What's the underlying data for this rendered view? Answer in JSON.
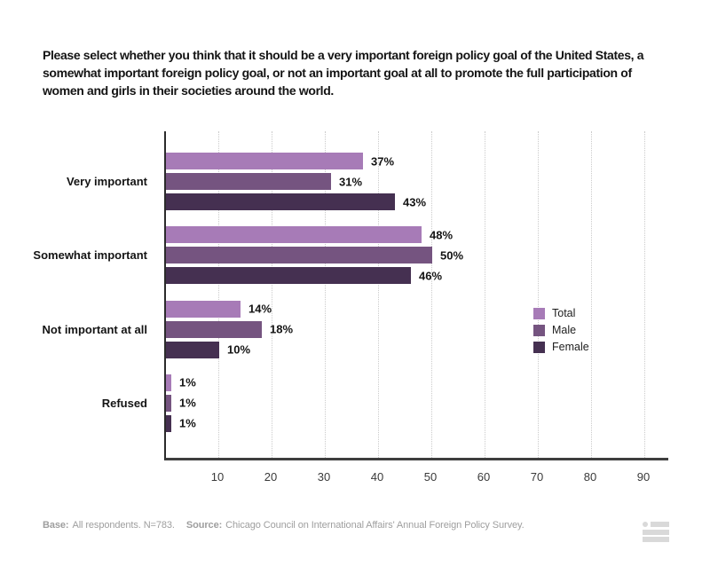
{
  "page": {
    "background": "#ffffff"
  },
  "header": {
    "title": "Please select whether you think that it should be a very important foreign policy goal of the United States, a somewhat important foreign policy goal, or not an important goal at all to promote the full participation of women and girls in their societies around the world."
  },
  "chart_data": {
    "type": "bar",
    "orientation": "horizontal",
    "categories": [
      "Very important",
      "Somewhat important",
      "Not important at all",
      "Refused"
    ],
    "series": [
      {
        "name": "Total",
        "color": "#a77bb7",
        "values": [
          37,
          48,
          14,
          1
        ]
      },
      {
        "name": "Male",
        "color": "#755480",
        "values": [
          31,
          50,
          18,
          1
        ]
      },
      {
        "name": "Female",
        "color": "#453051",
        "values": [
          43,
          46,
          10,
          1
        ]
      }
    ],
    "value_suffix": "%",
    "x_ticks": [
      10,
      20,
      30,
      40,
      50,
      60,
      70,
      80,
      90
    ],
    "xlim": [
      0,
      94.3
    ],
    "grid": "dotted-vertical",
    "legend_position": "right-middle",
    "legend": [
      "Total",
      "Male",
      "Female"
    ]
  },
  "style": {
    "grid_color": "#cbcbcb",
    "axis_color": "#2b2b2b",
    "footer_color": "#9e9e9e",
    "icon_color": "#d9d9d9"
  },
  "footer": {
    "base_label": "Base:",
    "base_text": "All respondents. N=783.",
    "source_label": "Source:",
    "source_text": "Chicago Council on International Affairs' Annual Foreign Policy Survey.",
    "icon": "list-lines-icon"
  }
}
